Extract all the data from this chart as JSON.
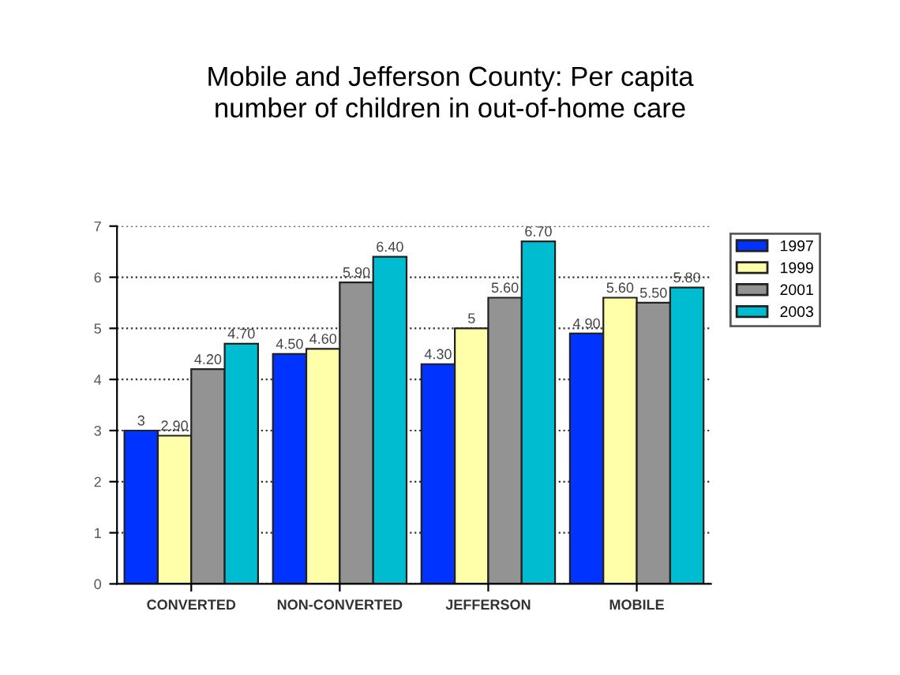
{
  "chart_data": {
    "type": "bar",
    "title": "Mobile and Jefferson County: Per capita\nnumber of children in out-of-home care",
    "categories": [
      "CONVERTED",
      "NON-CONVERTED",
      "JEFFERSON",
      "MOBILE"
    ],
    "series": [
      {
        "name": "1997",
        "color": "#0033ff",
        "values": [
          3,
          4.5,
          4.3,
          4.9
        ],
        "value_labels": [
          "3",
          "4.50",
          "4.30",
          "4.90"
        ]
      },
      {
        "name": "1999",
        "color": "#ffffaa",
        "values": [
          2.9,
          4.6,
          5,
          5.6
        ],
        "value_labels": [
          "2.90",
          "4.60",
          "5",
          "5.60"
        ]
      },
      {
        "name": "2001",
        "color": "#939393",
        "values": [
          4.2,
          5.9,
          5.6,
          5.5
        ],
        "value_labels": [
          "4.20",
          "5.90",
          "5.60",
          "5.50"
        ]
      },
      {
        "name": "2003",
        "color": "#00bcd0",
        "values": [
          4.7,
          6.4,
          6.7,
          5.8
        ],
        "value_labels": [
          "4.70",
          "6.40",
          "6.70",
          "5.80"
        ]
      }
    ],
    "ylim": [
      0,
      7
    ],
    "yticks": [
      0,
      1,
      2,
      3,
      4,
      5,
      6,
      7
    ],
    "grid": "y",
    "legend": "top right"
  }
}
